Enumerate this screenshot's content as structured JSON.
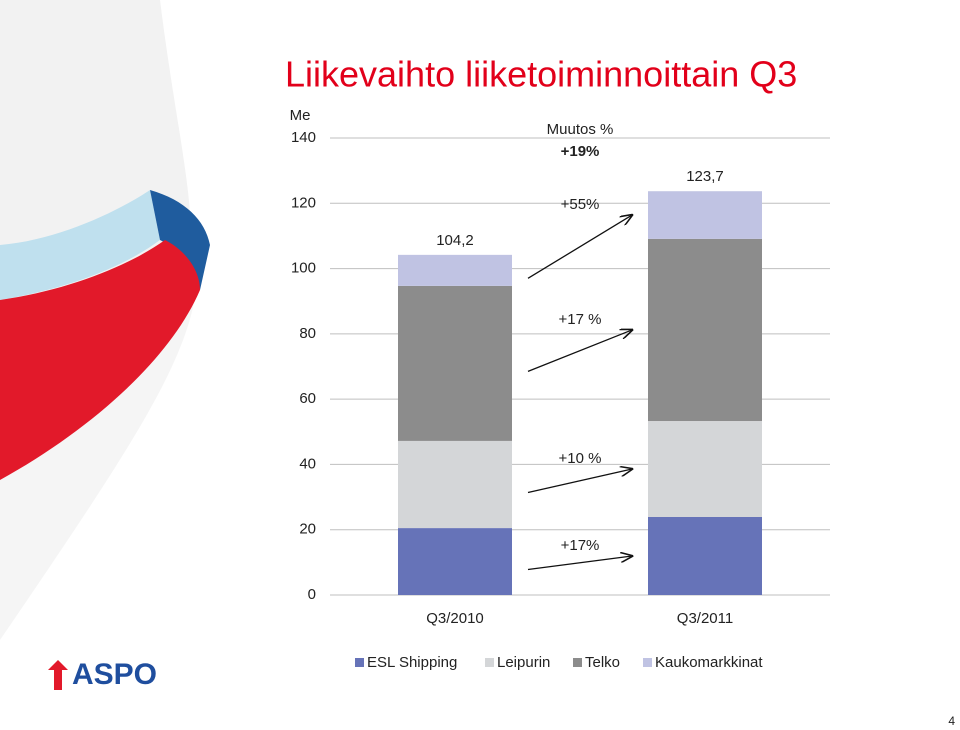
{
  "chart_data": {
    "type": "stacked_bar",
    "title": "Liikevaihto liiketoiminnoittain Q3",
    "y_label": "Me",
    "categories": [
      "Q3/2010",
      "Q3/2011"
    ],
    "series": [
      {
        "name": "ESL Shipping",
        "color": "#6673b8",
        "values": [
          20.5,
          23.9
        ]
      },
      {
        "name": "Leipurin",
        "color": "#d4d6d8",
        "values": [
          26.7,
          29.4
        ]
      },
      {
        "name": "Telko",
        "color": "#8c8c8c",
        "values": [
          47.5,
          55.8
        ]
      },
      {
        "name": "Kaukomarkkinat",
        "color": "#c0c3e3",
        "values": [
          9.5,
          14.6
        ]
      }
    ],
    "totals": [
      104.2,
      123.7
    ],
    "total_labels": [
      "104,2",
      "123,7"
    ],
    "change_title": "Muutos %",
    "total_change": "+19%",
    "changes": [
      "+17%",
      "+10 %",
      "+17 %",
      "+55%"
    ],
    "ylim": [
      0,
      140
    ],
    "yticks": [
      0,
      20,
      40,
      60,
      80,
      100,
      120,
      140
    ],
    "grid": true,
    "legend": "bottom"
  },
  "logo": "ASPO",
  "page_number": "4"
}
